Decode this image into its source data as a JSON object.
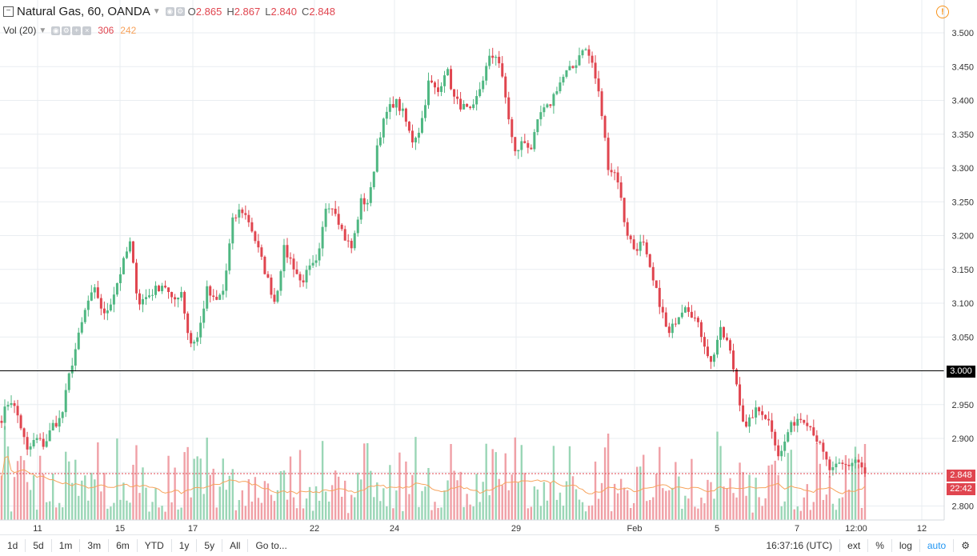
{
  "legend": {
    "symbol": "Natural Gas, 60, OANDA",
    "o_label": "O",
    "o_value": "2.865",
    "h_label": "H",
    "h_value": "2.867",
    "l_label": "L",
    "l_value": "2.840",
    "c_label": "C",
    "c_value": "2.848",
    "vol_label": "Vol (20)",
    "vol_value": "306",
    "vol_ma_value": "242"
  },
  "price_tags": {
    "level": "3.000",
    "last": "2.848",
    "countdown": "22:42"
  },
  "toolbar": {
    "ranges": [
      "1d",
      "5d",
      "1m",
      "3m",
      "6m",
      "YTD",
      "1y",
      "5y",
      "All"
    ],
    "goto": "Go to...",
    "time": "16:37:16 (UTC)",
    "ext": "ext",
    "percent": "%",
    "log": "log",
    "auto": "auto"
  },
  "colors": {
    "up": "#4fb782",
    "down": "#e0454f",
    "vol_up": "#9ad6b6",
    "vol_down": "#f0a0a6",
    "vol_ma": "#f7a35c",
    "grid": "#e9edf1",
    "level": "#000000",
    "accent": "#2196f3"
  },
  "chart_data": {
    "type": "candlestick",
    "ylim": [
      2.79,
      3.515
    ],
    "y_ticks": [
      "3.500",
      "3.450",
      "3.400",
      "3.350",
      "3.300",
      "3.250",
      "3.200",
      "3.150",
      "3.100",
      "3.050",
      "3.000",
      "2.950",
      "2.900",
      "2.850",
      "2.800"
    ],
    "x_ticks": [
      "11",
      "15",
      "17",
      "22",
      "24",
      "29",
      "Feb",
      "5",
      "7",
      "12:00",
      "12"
    ],
    "horizontal_line": 3.0,
    "last_price": 2.848,
    "close_path": [
      2.93,
      2.96,
      2.93,
      2.88,
      2.9,
      2.89,
      2.92,
      2.93,
      3.0,
      3.05,
      3.1,
      3.12,
      3.08,
      3.11,
      3.15,
      3.19,
      3.1,
      3.11,
      3.12,
      3.13,
      3.1,
      3.12,
      3.04,
      3.05,
      3.12,
      3.1,
      3.12,
      3.22,
      3.24,
      3.22,
      3.18,
      3.14,
      3.1,
      3.18,
      3.16,
      3.13,
      3.15,
      3.16,
      3.25,
      3.24,
      3.2,
      3.18,
      3.25,
      3.25,
      3.34,
      3.38,
      3.4,
      3.38,
      3.34,
      3.36,
      3.43,
      3.41,
      3.45,
      3.4,
      3.39,
      3.38,
      3.42,
      3.46,
      3.47,
      3.4,
      3.32,
      3.34,
      3.33,
      3.38,
      3.39,
      3.42,
      3.44,
      3.45,
      3.48,
      3.46,
      3.4,
      3.3,
      3.29,
      3.21,
      3.18,
      3.19,
      3.14,
      3.1,
      3.05,
      3.08,
      3.1,
      3.08,
      3.05,
      3.01,
      3.06,
      3.04,
      2.98,
      2.91,
      2.94,
      2.94,
      2.92,
      2.87,
      2.91,
      2.93,
      2.93,
      2.91,
      2.88,
      2.85,
      2.86,
      2.86,
      2.87,
      2.848
    ]
  }
}
